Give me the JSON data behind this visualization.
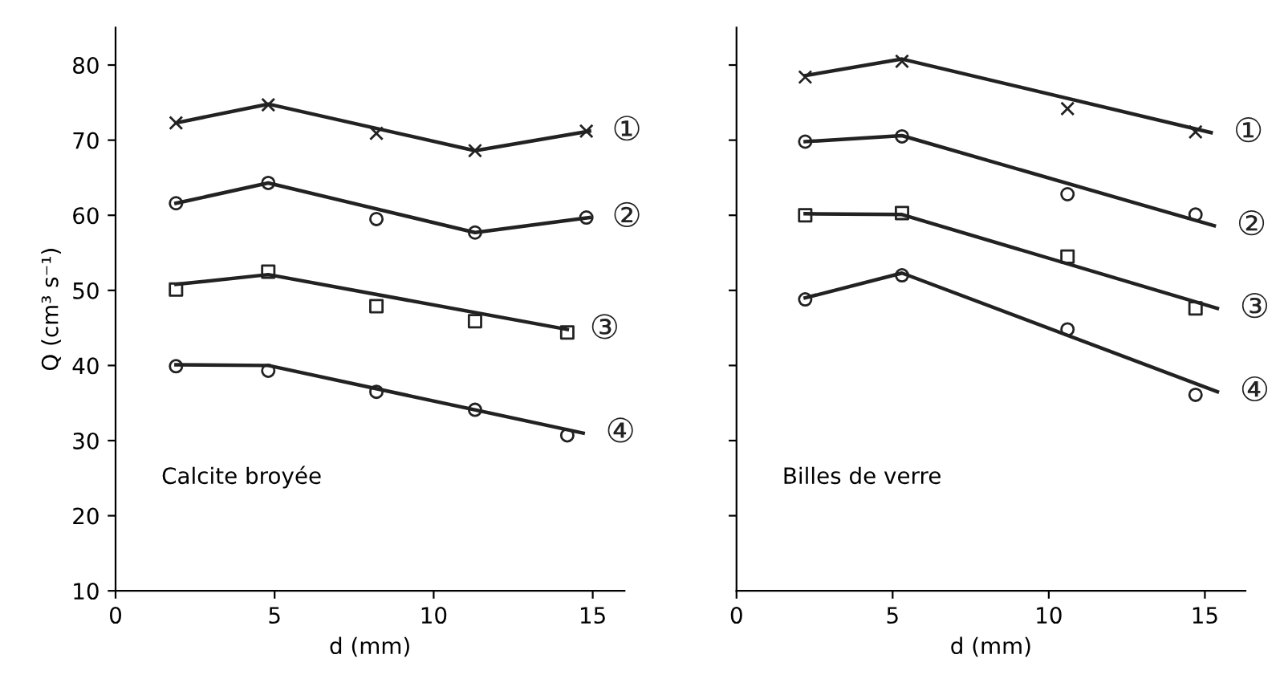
{
  "chart_data": [
    {
      "type": "scatter",
      "xlabel": "d (mm)",
      "ylabel": "Q (cm³ s⁻¹)",
      "xlim": [
        0,
        16
      ],
      "ylim": [
        10,
        85
      ],
      "xticks": [
        0,
        5,
        10,
        15
      ],
      "yticks": [
        10,
        20,
        30,
        40,
        50,
        60,
        70,
        80
      ],
      "grid": false,
      "legend": false,
      "annotations": [
        "Calcite broyée"
      ],
      "series": [
        {
          "marker": "cross",
          "color": "#222222",
          "x": [
            1.9,
            4.8,
            8.2,
            11.3,
            14.8
          ],
          "values": [
            72.3,
            74.7,
            70.9,
            68.6,
            71.2
          ]
        },
        {
          "marker": "circle",
          "color": "#222222",
          "x": [
            1.9,
            4.8,
            8.2,
            11.3,
            14.8
          ],
          "values": [
            61.6,
            64.3,
            59.5,
            57.7,
            59.7
          ]
        },
        {
          "marker": "square",
          "color": "#222222",
          "x": [
            1.9,
            4.8,
            8.2,
            11.3,
            14.2
          ],
          "values": [
            50.1,
            52.5,
            47.9,
            45.9,
            44.4
          ]
        },
        {
          "marker": "circle",
          "color": "#222222",
          "x": [
            1.9,
            4.8,
            8.2,
            11.3,
            14.2
          ],
          "values": [
            39.9,
            39.3,
            36.5,
            34.1,
            30.7
          ]
        },
        {
          "type": "line",
          "name": "①",
          "color": "#222222",
          "x": [
            1.9,
            4.8,
            11.3,
            14.9
          ],
          "values": [
            72.3,
            74.8,
            68.6,
            71.2
          ]
        },
        {
          "type": "line",
          "name": "②",
          "color": "#222222",
          "x": [
            1.9,
            4.8,
            11.3,
            14.9
          ],
          "values": [
            61.6,
            64.3,
            57.7,
            59.7
          ]
        },
        {
          "type": "line",
          "name": "③",
          "color": "#222222",
          "x": [
            1.9,
            4.8,
            14.2
          ],
          "values": [
            50.8,
            52.1,
            44.8
          ]
        },
        {
          "type": "line",
          "name": "④",
          "color": "#222222",
          "x": [
            1.9,
            4.8,
            14.7
          ],
          "values": [
            40.1,
            40.0,
            31.0
          ]
        }
      ]
    },
    {
      "type": "scatter",
      "xlabel": "d (mm)",
      "xlim": [
        0,
        16.3
      ],
      "ylim": [
        10,
        85
      ],
      "xticks": [
        0,
        5,
        10,
        15
      ],
      "yticks": [
        {
          "value": 20,
          "label": null
        },
        {
          "value": 30,
          "label": null
        },
        {
          "value": 40,
          "label": null
        },
        {
          "value": 50,
          "label": null
        },
        {
          "value": 60,
          "label": null
        },
        {
          "value": 70,
          "label": null
        },
        {
          "value": 80,
          "label": null
        }
      ],
      "tick_labels": "x",
      "grid": false,
      "legend": false,
      "annotations": [
        "Billes de verre"
      ],
      "series": [
        {
          "marker": "cross",
          "color": "#222222",
          "x": [
            2.2,
            5.3,
            10.6,
            14.7
          ],
          "values": [
            78.4,
            80.5,
            74.2,
            71.1
          ]
        },
        {
          "marker": "circle",
          "color": "#222222",
          "x": [
            2.2,
            5.3,
            10.6,
            14.7
          ],
          "values": [
            69.8,
            70.5,
            62.8,
            60.1
          ]
        },
        {
          "marker": "square",
          "color": "#222222",
          "x": [
            2.2,
            5.3,
            10.6,
            14.7
          ],
          "values": [
            60.0,
            60.3,
            54.5,
            47.6
          ]
        },
        {
          "marker": "circle",
          "color": "#222222",
          "x": [
            2.2,
            5.3,
            10.6,
            14.7
          ],
          "values": [
            48.8,
            52.0,
            44.8,
            36.1
          ]
        },
        {
          "type": "line",
          "name": "①",
          "color": "#222222",
          "x": [
            2.2,
            5.3,
            15.2
          ],
          "values": [
            78.6,
            80.8,
            71.0
          ]
        },
        {
          "type": "line",
          "name": "②",
          "color": "#222222",
          "x": [
            2.2,
            5.3,
            15.3
          ],
          "values": [
            69.8,
            70.6,
            58.6
          ]
        },
        {
          "type": "line",
          "name": "③",
          "color": "#222222",
          "x": [
            2.2,
            5.3,
            15.4
          ],
          "values": [
            60.2,
            60.1,
            47.6
          ]
        },
        {
          "type": "line",
          "name": "④",
          "color": "#222222",
          "x": [
            2.2,
            5.3,
            15.4
          ],
          "values": [
            49.0,
            52.3,
            36.5
          ]
        }
      ]
    }
  ]
}
